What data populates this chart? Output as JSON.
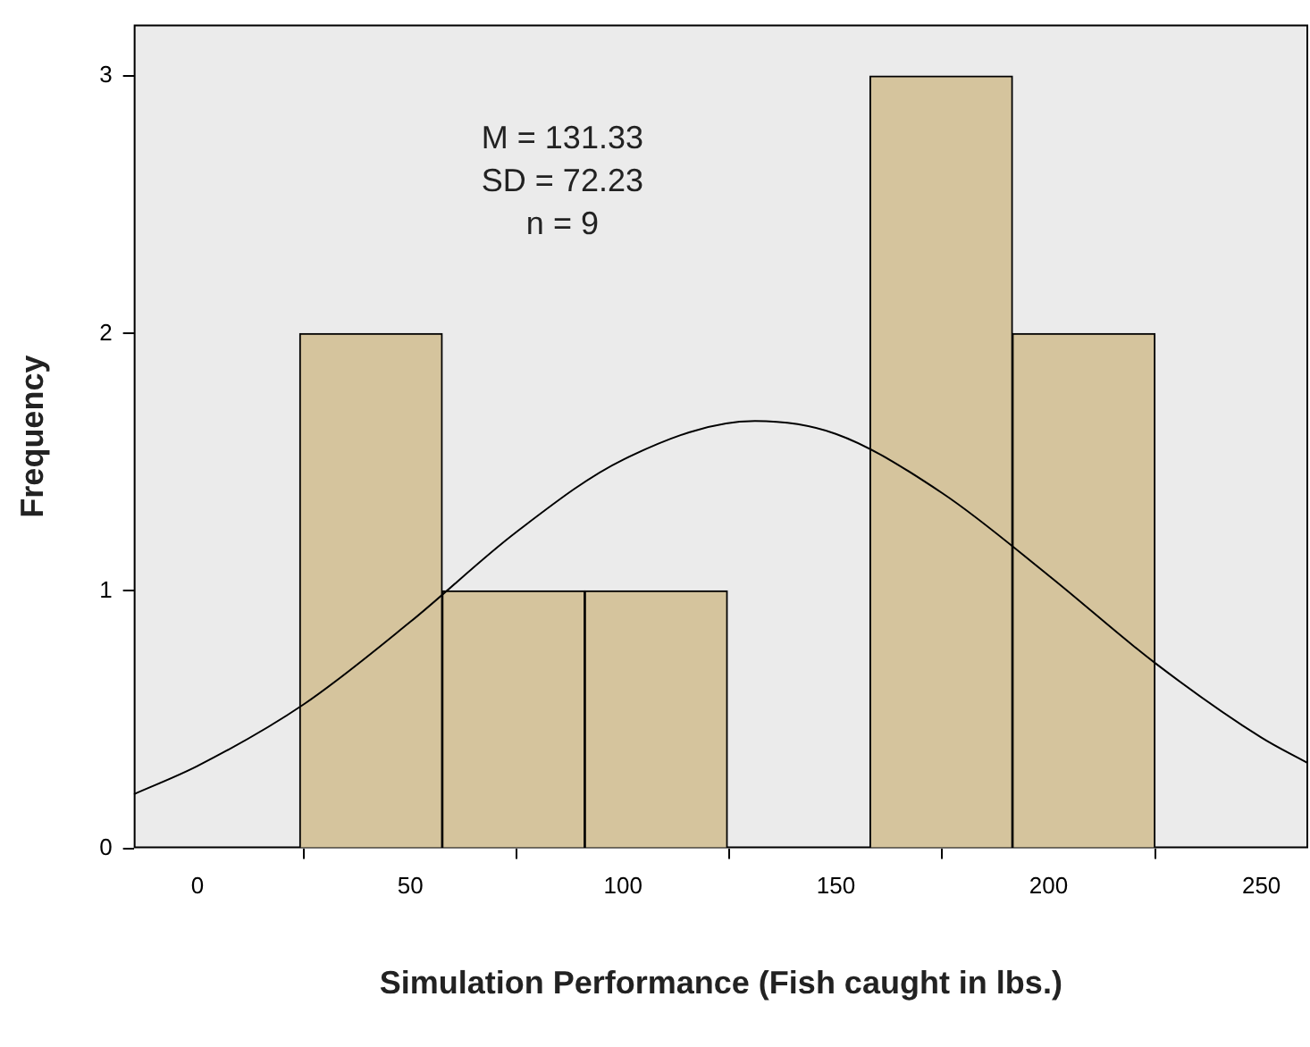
{
  "chart_data": {
    "type": "histogram",
    "xlabel": "Simulation Performance (Fish caught in lbs.)",
    "ylabel": "Frequency",
    "bins": [
      24,
      57.5,
      91,
      124.5,
      158,
      191.5,
      225
    ],
    "values": [
      2,
      1,
      1,
      0,
      3,
      2
    ],
    "color": "#d5c49d",
    "xlim": [
      -15,
      261
    ],
    "xticks": [
      0,
      50,
      100,
      150,
      200,
      250
    ],
    "ylim": [
      0,
      3.2
    ],
    "yticks": [
      0,
      1,
      2,
      3
    ],
    "grid": false,
    "legend": false,
    "annotations": [
      "M = 131.33",
      "SD = 72.23",
      "n = 9"
    ],
    "series": [
      {
        "type": "line",
        "color": "#000000",
        "x": [
          -15,
          0,
          25,
          50,
          75,
          100,
          131,
          150,
          175,
          200,
          225,
          250,
          261
        ],
        "values": [
          0.21,
          0.32,
          0.56,
          0.88,
          1.23,
          1.51,
          1.66,
          1.61,
          1.38,
          1.06,
          0.72,
          0.43,
          0.33
        ]
      }
    ]
  }
}
